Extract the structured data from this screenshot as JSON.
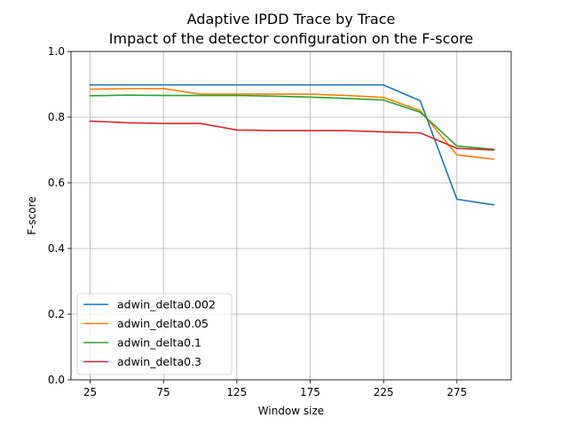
{
  "chart_data": {
    "type": "line",
    "title": "Adaptive IPDD Trace by Trace",
    "subtitle": "Impact of the detector configuration on the F-score",
    "xlabel": "Window size",
    "ylabel": "F-score",
    "xlim": [
      12,
      312
    ],
    "ylim": [
      0.0,
      1.0
    ],
    "x_ticks": [
      25,
      75,
      125,
      175,
      225,
      275
    ],
    "y_ticks": [
      0.0,
      0.2,
      0.4,
      0.6,
      0.8,
      1.0
    ],
    "x": [
      25,
      50,
      75,
      100,
      125,
      150,
      175,
      200,
      225,
      250,
      275,
      300
    ],
    "grid": true,
    "legend_position": "lower-left",
    "series": [
      {
        "name": "adwin_delta0.002",
        "color": "#1f77b4",
        "values": [
          0.898,
          0.898,
          0.898,
          0.898,
          0.898,
          0.898,
          0.898,
          0.898,
          0.898,
          0.85,
          0.55,
          0.533
        ]
      },
      {
        "name": "adwin_delta0.05",
        "color": "#ff7f0e",
        "values": [
          0.885,
          0.887,
          0.887,
          0.87,
          0.87,
          0.87,
          0.87,
          0.866,
          0.86,
          0.82,
          0.685,
          0.672
        ]
      },
      {
        "name": "adwin_delta0.1",
        "color": "#2ca02c",
        "values": [
          0.865,
          0.867,
          0.866,
          0.866,
          0.866,
          0.864,
          0.861,
          0.857,
          0.852,
          0.815,
          0.712,
          0.702
        ]
      },
      {
        "name": "adwin_delta0.3",
        "color": "#d62728",
        "values": [
          0.788,
          0.783,
          0.781,
          0.781,
          0.761,
          0.759,
          0.759,
          0.759,
          0.755,
          0.752,
          0.705,
          0.7
        ]
      }
    ]
  }
}
